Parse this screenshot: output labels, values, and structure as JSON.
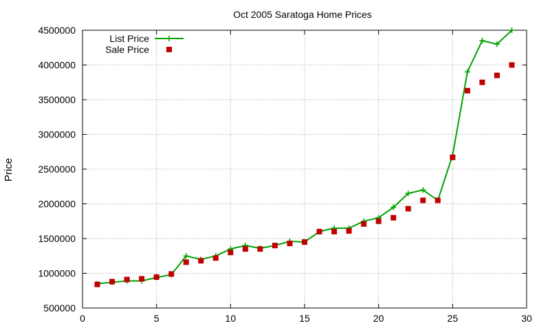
{
  "chart_data": {
    "type": "line",
    "title": "Oct 2005 Saratoga Home Prices",
    "xlabel": "",
    "ylabel": "Price",
    "xlim": [
      0,
      30
    ],
    "ylim": [
      500000,
      4500000
    ],
    "xticks": [
      0,
      5,
      10,
      15,
      20,
      25,
      30
    ],
    "xtick_labels": [
      "0",
      "5",
      "10",
      "15",
      "20",
      "25",
      "30"
    ],
    "yticks": [
      500000,
      1000000,
      1500000,
      2000000,
      2500000,
      3000000,
      3500000,
      4000000,
      4500000
    ],
    "ytick_labels": [
      "500000",
      "1000000",
      "1500000",
      "2000000",
      "2500000",
      "3000000",
      "3500000",
      "4000000",
      "4500000"
    ],
    "grid": true,
    "legend_position": "top-left",
    "x": [
      1,
      2,
      3,
      4,
      5,
      6,
      7,
      8,
      9,
      10,
      11,
      12,
      13,
      14,
      15,
      16,
      17,
      18,
      19,
      20,
      21,
      22,
      23,
      24,
      25,
      26,
      27,
      28,
      29
    ],
    "series": [
      {
        "name": "List Price",
        "style": "line-plus",
        "color": "#00a000",
        "values": [
          850000,
          870000,
          890000,
          890000,
          940000,
          980000,
          1250000,
          1200000,
          1250000,
          1350000,
          1400000,
          1360000,
          1400000,
          1460000,
          1450000,
          1600000,
          1650000,
          1650000,
          1750000,
          1800000,
          1950000,
          2150000,
          2200000,
          2050000,
          2700000,
          3900000,
          4350000,
          4300000,
          4500000
        ]
      },
      {
        "name": "Sale Price",
        "style": "square-points",
        "color": "#c00000",
        "values": [
          840000,
          880000,
          910000,
          920000,
          945000,
          990000,
          1160000,
          1180000,
          1220000,
          1300000,
          1350000,
          1350000,
          1400000,
          1430000,
          1450000,
          1600000,
          1600000,
          1610000,
          1710000,
          1750000,
          1800000,
          1930000,
          2050000,
          2050000,
          2670000,
          3630000,
          3750000,
          3850000,
          4000000
        ]
      }
    ]
  }
}
